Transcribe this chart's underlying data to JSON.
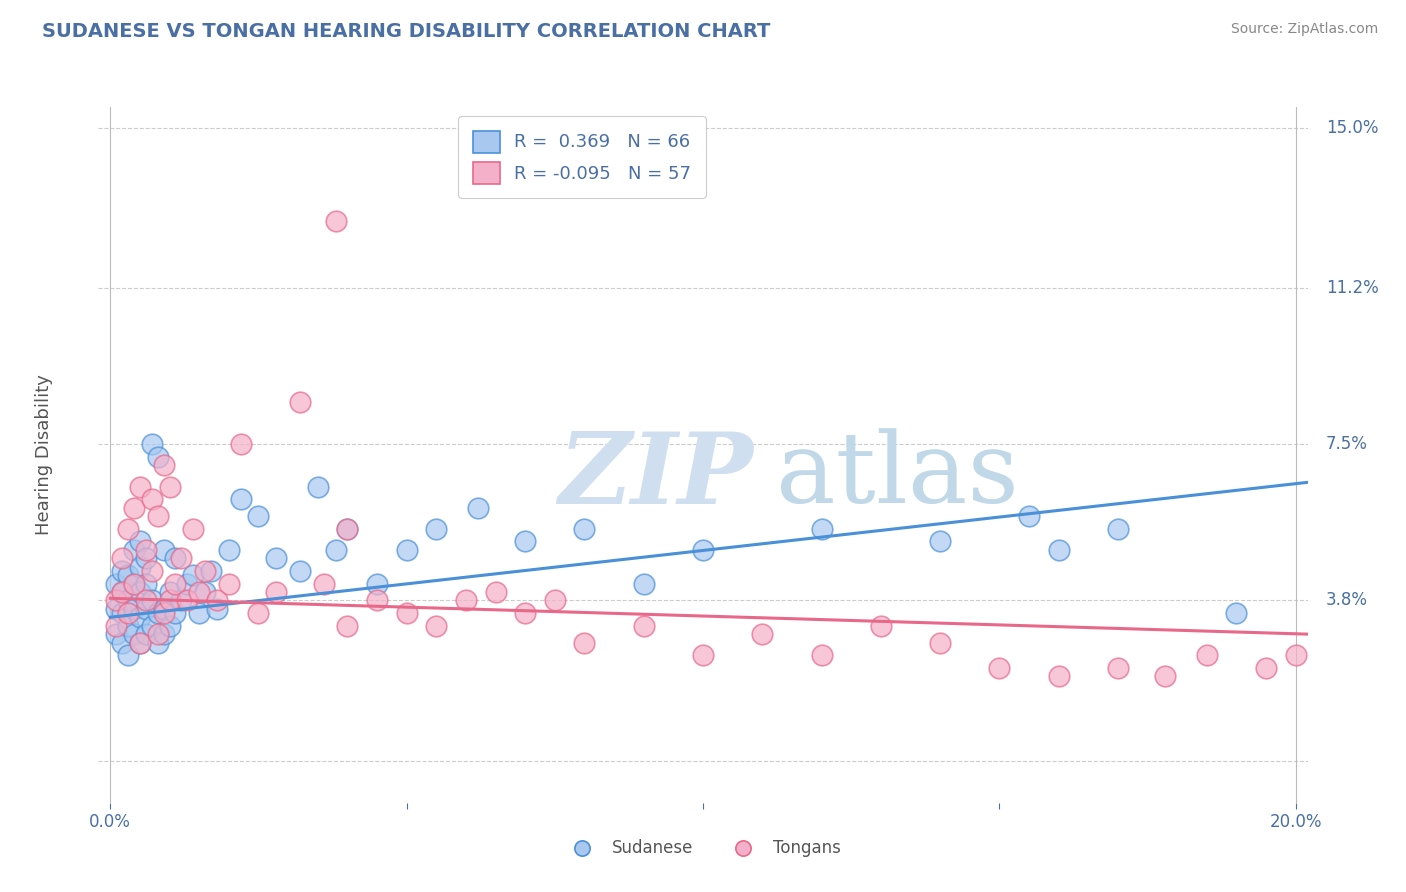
{
  "title": "SUDANESE VS TONGAN HEARING DISABILITY CORRELATION CHART",
  "source": "Source: ZipAtlas.com",
  "ylabel": "Hearing Disability",
  "xlim": [
    -0.002,
    0.202
  ],
  "ylim": [
    -0.01,
    0.155
  ],
  "yticks": [
    0.0,
    0.038,
    0.075,
    0.112,
    0.15
  ],
  "ytick_labels": [
    "",
    "3.8%",
    "7.5%",
    "11.2%",
    "15.0%"
  ],
  "xticks": [
    0.0,
    0.05,
    0.1,
    0.15,
    0.2
  ],
  "xtick_labels": [
    "0.0%",
    "",
    "",
    "",
    "20.0%"
  ],
  "legend_r_entries": [
    {
      "label_r": "R = ",
      "label_rval": " 0.369",
      "label_n": "  N = ",
      "label_nval": "66",
      "color": "#aec6e8"
    },
    {
      "label_r": "R = ",
      "label_rval": "-0.095",
      "label_n": "  N = ",
      "label_nval": "57",
      "color": "#f4b8c8"
    }
  ],
  "sudanese_legend": "Sudanese",
  "tongan_legend": "Tongans",
  "blue_color": "#4a90d9",
  "pink_color": "#e8688a",
  "blue_scatter_color": "#a8c8f0",
  "pink_scatter_color": "#f4b0c8",
  "title_color": "#4a6fa5",
  "axis_label_color": "#555555",
  "tick_color": "#4a6fa5",
  "watermark_zip_color": "#d0dff0",
  "watermark_atlas_color": "#c0d8e8",
  "grid_color": "#cccccc",
  "background_color": "#ffffff",
  "blue_trend_start_x": 0.0,
  "blue_trend_start_y": 0.034,
  "blue_trend_end_x": 0.202,
  "blue_trend_end_y": 0.066,
  "pink_trend_start_x": 0.0,
  "pink_trend_start_y": 0.0385,
  "pink_trend_end_x": 0.202,
  "pink_trend_end_y": 0.03,
  "sudanese_x": [
    0.001,
    0.001,
    0.001,
    0.002,
    0.002,
    0.002,
    0.002,
    0.003,
    0.003,
    0.003,
    0.003,
    0.004,
    0.004,
    0.004,
    0.004,
    0.005,
    0.005,
    0.005,
    0.005,
    0.005,
    0.006,
    0.006,
    0.006,
    0.006,
    0.007,
    0.007,
    0.007,
    0.008,
    0.008,
    0.008,
    0.009,
    0.009,
    0.009,
    0.01,
    0.01,
    0.011,
    0.011,
    0.012,
    0.013,
    0.014,
    0.015,
    0.016,
    0.017,
    0.018,
    0.02,
    0.022,
    0.025,
    0.028,
    0.032,
    0.035,
    0.038,
    0.04,
    0.045,
    0.05,
    0.055,
    0.062,
    0.07,
    0.08,
    0.09,
    0.1,
    0.12,
    0.14,
    0.155,
    0.16,
    0.17,
    0.19
  ],
  "sudanese_y": [
    0.03,
    0.036,
    0.042,
    0.028,
    0.035,
    0.04,
    0.045,
    0.025,
    0.032,
    0.038,
    0.044,
    0.03,
    0.036,
    0.042,
    0.05,
    0.028,
    0.034,
    0.04,
    0.046,
    0.052,
    0.03,
    0.036,
    0.042,
    0.048,
    0.032,
    0.038,
    0.075,
    0.028,
    0.035,
    0.072,
    0.03,
    0.036,
    0.05,
    0.032,
    0.04,
    0.035,
    0.048,
    0.038,
    0.042,
    0.044,
    0.035,
    0.04,
    0.045,
    0.036,
    0.05,
    0.062,
    0.058,
    0.048,
    0.045,
    0.065,
    0.05,
    0.055,
    0.042,
    0.05,
    0.055,
    0.06,
    0.052,
    0.055,
    0.042,
    0.05,
    0.055,
    0.052,
    0.058,
    0.05,
    0.055,
    0.035
  ],
  "tongan_x": [
    0.001,
    0.001,
    0.002,
    0.002,
    0.003,
    0.003,
    0.004,
    0.004,
    0.005,
    0.005,
    0.006,
    0.006,
    0.007,
    0.007,
    0.008,
    0.008,
    0.009,
    0.009,
    0.01,
    0.01,
    0.011,
    0.012,
    0.013,
    0.014,
    0.015,
    0.016,
    0.018,
    0.02,
    0.022,
    0.025,
    0.028,
    0.032,
    0.036,
    0.04,
    0.045,
    0.05,
    0.055,
    0.065,
    0.075,
    0.08,
    0.09,
    0.1,
    0.11,
    0.12,
    0.14,
    0.15,
    0.16,
    0.17,
    0.178,
    0.185,
    0.038,
    0.06,
    0.04,
    0.07,
    0.13,
    0.195,
    0.2
  ],
  "tongan_y": [
    0.032,
    0.038,
    0.04,
    0.048,
    0.035,
    0.055,
    0.042,
    0.06,
    0.028,
    0.065,
    0.038,
    0.05,
    0.045,
    0.062,
    0.03,
    0.058,
    0.035,
    0.07,
    0.038,
    0.065,
    0.042,
    0.048,
    0.038,
    0.055,
    0.04,
    0.045,
    0.038,
    0.042,
    0.075,
    0.035,
    0.04,
    0.085,
    0.042,
    0.055,
    0.038,
    0.035,
    0.032,
    0.04,
    0.038,
    0.028,
    0.032,
    0.025,
    0.03,
    0.025,
    0.028,
    0.022,
    0.02,
    0.022,
    0.02,
    0.025,
    0.128,
    0.038,
    0.032,
    0.035,
    0.032,
    0.022,
    0.025
  ]
}
